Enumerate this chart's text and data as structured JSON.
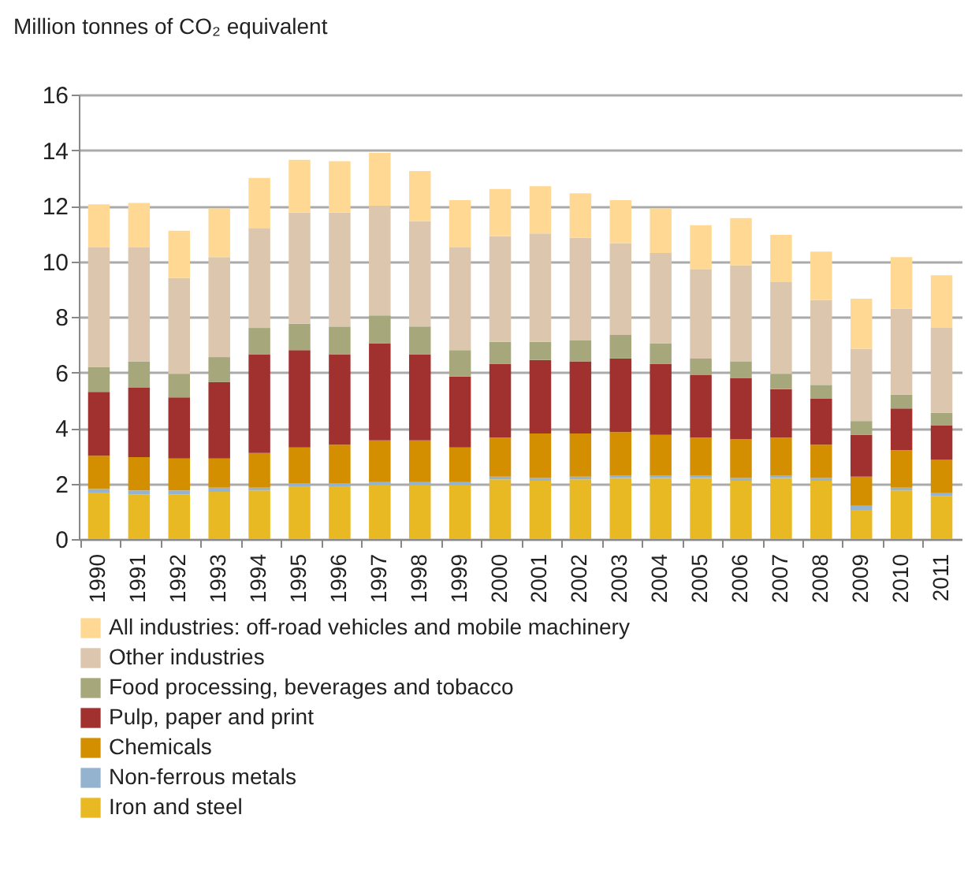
{
  "chart_data": {
    "type": "bar",
    "stacked": true,
    "ylabel": "Million tonnes of CO₂ equivalent",
    "categories": [
      "1990",
      "1991",
      "1992",
      "1993",
      "1994",
      "1995",
      "1996",
      "1997",
      "1998",
      "1999",
      "2000",
      "2001",
      "2002",
      "2003",
      "2004",
      "2005",
      "2006",
      "2007",
      "2008",
      "2009",
      "2010",
      "2011"
    ],
    "series": [
      {
        "name": "Iron and steel",
        "color": "#e8b923",
        "values": [
          1.65,
          1.6,
          1.6,
          1.7,
          1.75,
          1.9,
          1.9,
          1.95,
          1.95,
          1.95,
          2.15,
          2.1,
          2.15,
          2.2,
          2.2,
          2.2,
          2.1,
          2.2,
          2.1,
          1.05,
          1.75,
          1.55
        ]
      },
      {
        "name": "Non-ferrous metals",
        "color": "#94b3cf",
        "values": [
          0.15,
          0.15,
          0.15,
          0.15,
          0.1,
          0.1,
          0.1,
          0.1,
          0.1,
          0.1,
          0.1,
          0.1,
          0.1,
          0.1,
          0.1,
          0.1,
          0.1,
          0.1,
          0.1,
          0.15,
          0.1,
          0.1
        ]
      },
      {
        "name": "Chemicals",
        "color": "#d48f00",
        "values": [
          1.2,
          1.2,
          1.15,
          1.05,
          1.25,
          1.3,
          1.4,
          1.5,
          1.5,
          1.25,
          1.4,
          1.6,
          1.55,
          1.55,
          1.45,
          1.35,
          1.4,
          1.35,
          1.2,
          1.05,
          1.35,
          1.2
        ]
      },
      {
        "name": "Pulp, paper and print",
        "color": "#a0312f",
        "values": [
          2.3,
          2.5,
          2.2,
          2.75,
          3.55,
          3.5,
          3.25,
          3.5,
          3.1,
          2.55,
          2.65,
          2.65,
          2.6,
          2.65,
          2.55,
          2.25,
          2.2,
          1.75,
          1.65,
          1.5,
          1.5,
          1.25
        ]
      },
      {
        "name": "Food processing, beverages and tobacco",
        "color": "#a6a77a",
        "values": [
          0.9,
          0.95,
          0.85,
          0.9,
          0.95,
          0.95,
          1.0,
          1.0,
          1.0,
          0.95,
          0.8,
          0.65,
          0.75,
          0.85,
          0.75,
          0.6,
          0.6,
          0.55,
          0.5,
          0.5,
          0.5,
          0.45
        ]
      },
      {
        "name": "Other industries",
        "color": "#dcc6ad",
        "values": [
          4.3,
          4.1,
          3.45,
          3.6,
          3.6,
          4.0,
          4.1,
          3.95,
          3.8,
          3.7,
          3.8,
          3.9,
          3.7,
          3.3,
          3.25,
          3.2,
          3.45,
          3.3,
          3.05,
          2.6,
          3.1,
          3.05
        ]
      },
      {
        "name": "All industries: off-road vehicles and mobile machinery",
        "color": "#ffd993",
        "values": [
          1.55,
          1.6,
          1.7,
          1.75,
          1.8,
          1.9,
          1.85,
          1.9,
          1.8,
          1.7,
          1.7,
          1.7,
          1.6,
          1.55,
          1.6,
          1.6,
          1.7,
          1.7,
          1.75,
          1.8,
          1.85,
          1.9
        ]
      }
    ],
    "ylim": [
      0,
      16
    ],
    "yticks": [
      0,
      2,
      4,
      6,
      8,
      10,
      12,
      14,
      16
    ],
    "grid": "y",
    "legend": "bottom"
  }
}
